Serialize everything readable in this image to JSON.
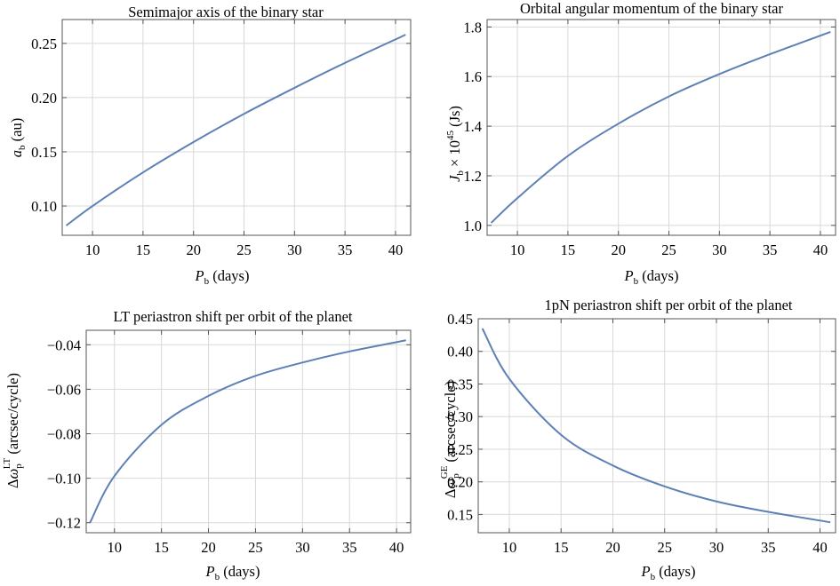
{
  "chart_data": [
    {
      "type": "line",
      "title": "Semimajor axis of the binary star",
      "xlabel": "P_b (days)",
      "ylabel": "a_b (au)",
      "xlim": [
        7,
        41.5
      ],
      "ylim": [
        0.073,
        0.272
      ],
      "xticks": [
        10,
        15,
        20,
        25,
        30,
        35,
        40
      ],
      "xtick_labels": [
        "10",
        "15",
        "20",
        "25",
        "30",
        "35",
        "40"
      ],
      "yticks": [
        0.1,
        0.15,
        0.2,
        0.25
      ],
      "ytick_labels": [
        "0.10",
        "0.15",
        "0.20",
        "0.25"
      ],
      "grid": true,
      "series": [
        {
          "x": [
            7.4,
            10,
            15,
            20,
            25,
            30,
            35,
            41
          ],
          "y": [
            0.082,
            0.1,
            0.131,
            0.159,
            0.185,
            0.209,
            0.232,
            0.258
          ]
        }
      ]
    },
    {
      "type": "line",
      "title": "Orbital angular momentum of the binary star",
      "xlabel": "P_b (days)",
      "ylabel": "J_b × 10^45 (Js)",
      "xlim": [
        7,
        41.5
      ],
      "ylim": [
        0.96,
        1.83
      ],
      "xticks": [
        10,
        15,
        20,
        25,
        30,
        35,
        40
      ],
      "xtick_labels": [
        "10",
        "15",
        "20",
        "25",
        "30",
        "35",
        "40"
      ],
      "yticks": [
        1.0,
        1.2,
        1.4,
        1.6,
        1.8
      ],
      "ytick_labels": [
        "1.0",
        "1.2",
        "1.4",
        "1.6",
        "1.8"
      ],
      "grid": true,
      "series": [
        {
          "x": [
            7.4,
            10,
            15,
            20,
            25,
            30,
            35,
            41
          ],
          "y": [
            1.01,
            1.11,
            1.28,
            1.41,
            1.52,
            1.61,
            1.69,
            1.78
          ]
        }
      ]
    },
    {
      "type": "line",
      "title": "LT periastron shift per orbit of the planet",
      "xlabel": "P_b (days)",
      "ylabel": "Δω_p^LT (arcsec/cycle)",
      "xlim": [
        7,
        41.5
      ],
      "ylim": [
        -0.1245,
        -0.0335
      ],
      "xticks": [
        10,
        15,
        20,
        25,
        30,
        35,
        40
      ],
      "xtick_labels": [
        "10",
        "15",
        "20",
        "25",
        "30",
        "35",
        "40"
      ],
      "yticks": [
        -0.12,
        -0.1,
        -0.08,
        -0.06,
        -0.04
      ],
      "ytick_labels": [
        "−0.12",
        "−0.10",
        "−0.08",
        "−0.06",
        "−0.04"
      ],
      "grid": true,
      "series": [
        {
          "x": [
            7.4,
            10,
            15,
            20,
            25,
            30,
            35,
            41
          ],
          "y": [
            -0.12,
            -0.099,
            -0.076,
            -0.063,
            -0.054,
            -0.048,
            -0.043,
            -0.038
          ]
        }
      ]
    },
    {
      "type": "line",
      "title": "1pN periastron shift per orbit of the planet",
      "xlabel": "P_b (days)",
      "ylabel": "Δω_p^GE (arcsec/cycle)",
      "xlim": [
        7,
        41.5
      ],
      "ylim": [
        0.122,
        0.45
      ],
      "xticks": [
        10,
        15,
        20,
        25,
        30,
        35,
        40
      ],
      "xtick_labels": [
        "10",
        "15",
        "20",
        "25",
        "30",
        "35",
        "40"
      ],
      "yticks": [
        0.15,
        0.2,
        0.25,
        0.3,
        0.35,
        0.4,
        0.45
      ],
      "ytick_labels": [
        "0.15",
        "0.20",
        "0.25",
        "0.30",
        "0.35",
        "0.40",
        "0.45"
      ],
      "grid": true,
      "series": [
        {
          "x": [
            7.4,
            10,
            15,
            20,
            25,
            30,
            35,
            41
          ],
          "y": [
            0.435,
            0.358,
            0.272,
            0.225,
            0.193,
            0.17,
            0.154,
            0.138
          ]
        }
      ]
    }
  ]
}
